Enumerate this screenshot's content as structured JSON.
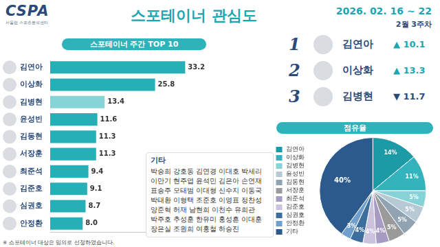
{
  "header": {
    "logo": "CSPA",
    "logo_subtitle": "서울랩 스포츠분석센터",
    "title": "스포테이너 관심도",
    "date": "2026. 02. 16 ~ 22",
    "week": "2월 3주차"
  },
  "chart_data": [
    {
      "type": "bar",
      "title": "스포테이너 주간 TOP 10",
      "orientation": "horizontal",
      "categories": [
        "김연아",
        "이상화",
        "김병현",
        "윤성빈",
        "김동현",
        "서장훈",
        "최준석",
        "김준호",
        "심권호",
        "안정환"
      ],
      "values": [
        33.2,
        25.8,
        13.4,
        11.6,
        11.3,
        11.3,
        9.4,
        9.1,
        8.7,
        8.0
      ],
      "value_labels": [
        "33.2",
        "25.8",
        "13.4",
        "11.6",
        "11.3",
        "11.3",
        "9.4",
        "9.1",
        "8.7",
        "8.0"
      ],
      "colors": [
        "#27afb8",
        "#27afb8",
        "#86d4d8",
        "#27afb8",
        "#27afb8",
        "#27afb8",
        "#27afb8",
        "#27afb8",
        "#27afb8",
        "#27afb8"
      ],
      "xlim": [
        0,
        35
      ],
      "grid": false,
      "data_labels": true,
      "tick_labels": "y"
    },
    {
      "type": "pie",
      "title": "점유율",
      "categories": [
        "김연아",
        "이상화",
        "김병현",
        "윤성빈",
        "김동현",
        "서장훈",
        "최준석",
        "김준호",
        "심권호",
        "안정환",
        "기타"
      ],
      "values": [
        14,
        11,
        5,
        5,
        5,
        5,
        4,
        4,
        4,
        3,
        40
      ],
      "value_labels": [
        "14%",
        "11%",
        "5%",
        "5%",
        "5%",
        "5%",
        "4%",
        "4%",
        "4%",
        "3%",
        "40%"
      ],
      "colors": [
        "#1c9aa6",
        "#35b3bd",
        "#86d3d7",
        "#b8c9d6",
        "#8fa3b3",
        "#9a9a9a",
        "#a79bc4",
        "#c9c3dd",
        "#3c6e9e",
        "#6f9fcc",
        "#2c5a8c"
      ],
      "legend": "left",
      "data_labels": true
    }
  ],
  "top3": [
    {
      "rank": 1,
      "name": "김연아",
      "arrow": "▲",
      "change": 10.1
    },
    {
      "rank": 2,
      "name": "이상화",
      "arrow": "▲",
      "change": 13.3
    },
    {
      "rank": 3,
      "name": "김병현",
      "arrow": "▼",
      "change": 11.7
    }
  ],
  "others": {
    "title": "기타",
    "lines": [
      "박승희 강호동 김연경 이대호 박세리",
      "이만기 현주엽 윤석민 김은아 손연재",
      "표승주 모태범 이대형 신수지 이동국",
      "박태환 이형택 조준호 이영표 정찬성",
      "양준혁 허재 남현희 이천수 유희관",
      "박주호 추성훈 한유미 홍성흔 이대훈",
      "장은실 조원희 여홍철 하승진"
    ]
  },
  "footnote": "※ 스포테이너 대상은 임의로 선정하였습니다."
}
